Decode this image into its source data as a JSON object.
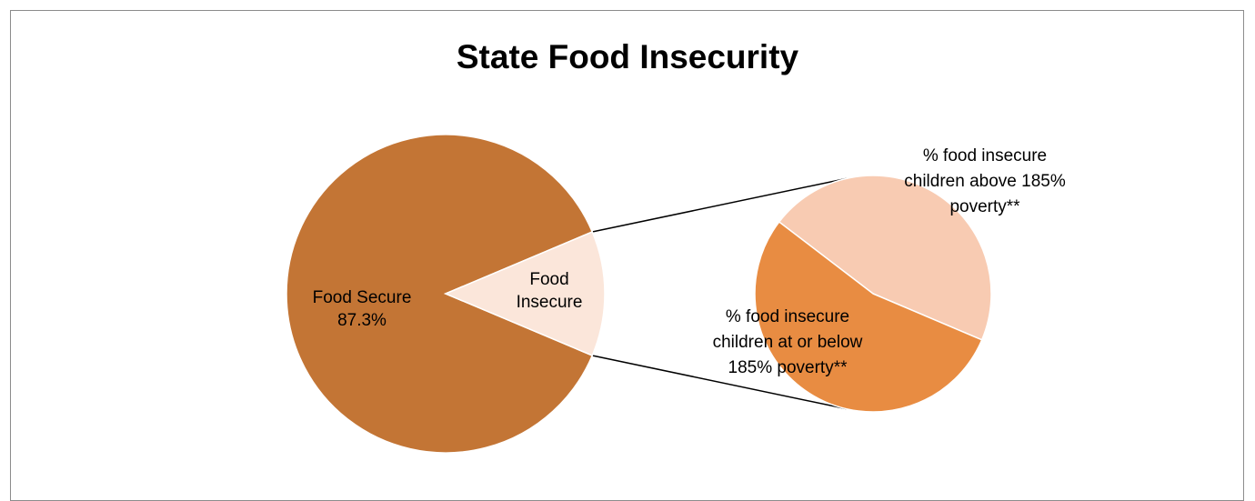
{
  "chart_data": {
    "type": "pie",
    "title": "State Food Insecurity",
    "main_pie": {
      "slices": [
        {
          "label": "Food Secure",
          "value": 87.3,
          "value_label": "87.3%"
        },
        {
          "label": "Food Insecure",
          "value": 12.7
        }
      ]
    },
    "secondary_pie": {
      "slices": [
        {
          "label": "% food insecure children above 185% poverty**",
          "value": 46
        },
        {
          "label": "% food insecure children at or below 185% poverty**",
          "value": 54
        }
      ]
    },
    "colors": {
      "food_secure": "#C37535",
      "food_insecure": "#FBE6DA",
      "above_185": "#F8CBB2",
      "at_or_below_185": "#E88C42"
    }
  }
}
